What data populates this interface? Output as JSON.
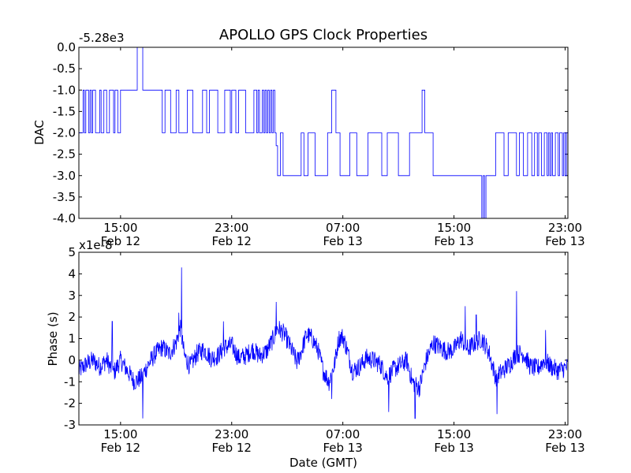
{
  "figure_title": "APOLLO GPS Clock Properties",
  "colors": {
    "line": "#0000ff",
    "frame": "#000000",
    "background": "#ffffff"
  },
  "chart_data": [
    {
      "type": "line",
      "name": "dac",
      "title": "APOLLO GPS Clock Properties",
      "ylabel": "DAC",
      "xlabel": "",
      "offset_text": "-5.28e3",
      "ylim": [
        -4.0,
        0.0
      ],
      "yticks": [
        0.0,
        -0.5,
        -1.0,
        -1.5,
        -2.0,
        -2.5,
        -3.0,
        -3.5,
        -4.0
      ],
      "ytick_labels": [
        "0.0",
        "-0.5",
        "-1.0",
        "-1.5",
        "-2.0",
        "-2.5",
        "-3.0",
        "-3.5",
        "-4.0"
      ],
      "xlim_hours": [
        12.0,
        47.2
      ],
      "xticks_hours": [
        15,
        23,
        31,
        39,
        47
      ],
      "xtick_labels": [
        [
          "15:00",
          "Feb 12"
        ],
        [
          "23:00",
          "Feb 12"
        ],
        [
          "07:00",
          "Feb 13"
        ],
        [
          "15:00",
          "Feb 13"
        ],
        [
          "23:00",
          "Feb 13"
        ]
      ],
      "series": [
        {
          "name": "DAC",
          "step": true,
          "points": [
            [
              12.0,
              -2
            ],
            [
              12.3,
              -1
            ],
            [
              12.4,
              -2
            ],
            [
              12.5,
              -1
            ],
            [
              12.7,
              -2
            ],
            [
              12.8,
              -1
            ],
            [
              12.9,
              -2
            ],
            [
              13.0,
              -1
            ],
            [
              13.2,
              -2
            ],
            [
              13.5,
              -1
            ],
            [
              13.6,
              -2
            ],
            [
              13.8,
              -1
            ],
            [
              14.0,
              -2
            ],
            [
              14.2,
              -1
            ],
            [
              14.5,
              -2
            ],
            [
              14.6,
              -1
            ],
            [
              14.8,
              -2
            ],
            [
              15.0,
              -1
            ],
            [
              16.2,
              0
            ],
            [
              16.6,
              -1
            ],
            [
              18.0,
              -2
            ],
            [
              18.2,
              -1
            ],
            [
              18.6,
              -2
            ],
            [
              19.0,
              -1
            ],
            [
              19.2,
              -2
            ],
            [
              19.8,
              -1
            ],
            [
              20.2,
              -2
            ],
            [
              20.9,
              -1
            ],
            [
              21.2,
              -2
            ],
            [
              21.4,
              -1
            ],
            [
              22.0,
              -2
            ],
            [
              22.5,
              -1
            ],
            [
              22.9,
              -2
            ],
            [
              23.0,
              -1
            ],
            [
              23.3,
              -2
            ],
            [
              23.5,
              -1
            ],
            [
              24.0,
              -2
            ],
            [
              24.6,
              -1
            ],
            [
              24.8,
              -2
            ],
            [
              24.9,
              -1
            ],
            [
              25.0,
              -2
            ],
            [
              25.2,
              -1
            ],
            [
              25.3,
              -2
            ],
            [
              25.4,
              -1
            ],
            [
              25.5,
              -2
            ],
            [
              25.6,
              -1
            ],
            [
              25.7,
              -2
            ],
            [
              25.8,
              -1
            ],
            [
              25.9,
              -2
            ],
            [
              26.0,
              -1
            ],
            [
              26.1,
              -2
            ],
            [
              26.2,
              -2.3
            ],
            [
              26.3,
              -3
            ],
            [
              26.5,
              -2
            ],
            [
              26.7,
              -3
            ],
            [
              28.0,
              -2
            ],
            [
              28.2,
              -3
            ],
            [
              28.5,
              -2
            ],
            [
              29.0,
              -3
            ],
            [
              29.9,
              -2
            ],
            [
              30.2,
              -1
            ],
            [
              30.5,
              -2
            ],
            [
              30.8,
              -3
            ],
            [
              31.5,
              -2
            ],
            [
              32.0,
              -3
            ],
            [
              32.8,
              -2
            ],
            [
              33.8,
              -3
            ],
            [
              34.2,
              -2
            ],
            [
              35.0,
              -3
            ],
            [
              35.8,
              -2
            ],
            [
              36.7,
              -1
            ],
            [
              36.9,
              -2
            ],
            [
              37.5,
              -3
            ],
            [
              41.0,
              -4
            ],
            [
              41.1,
              -3
            ],
            [
              41.2,
              -4
            ],
            [
              41.3,
              -3
            ],
            [
              42.0,
              -2
            ],
            [
              42.6,
              -3
            ],
            [
              42.9,
              -2
            ],
            [
              43.5,
              -3
            ],
            [
              43.7,
              -2
            ],
            [
              44.0,
              -3
            ],
            [
              44.3,
              -2
            ],
            [
              44.6,
              -3
            ],
            [
              44.8,
              -2
            ],
            [
              45.0,
              -3
            ],
            [
              45.1,
              -2
            ],
            [
              45.3,
              -3
            ],
            [
              45.5,
              -2
            ],
            [
              45.7,
              -3
            ],
            [
              45.8,
              -2
            ],
            [
              45.9,
              -3
            ],
            [
              46.0,
              -2
            ],
            [
              46.1,
              -3
            ],
            [
              46.3,
              -2
            ],
            [
              46.5,
              -3
            ],
            [
              46.6,
              -2
            ],
            [
              46.8,
              -3
            ],
            [
              46.9,
              -2
            ],
            [
              47.0,
              -3
            ],
            [
              47.1,
              -2
            ],
            [
              47.2,
              -2
            ]
          ]
        }
      ]
    },
    {
      "type": "line",
      "name": "phase",
      "title": "",
      "ylabel": "Phase (s)",
      "xlabel": "Date (GMT)",
      "offset_text": "x1e-8",
      "ylim": [
        -3,
        5
      ],
      "yticks": [
        5,
        4,
        3,
        2,
        1,
        0,
        -1,
        -2,
        -3
      ],
      "ytick_labels": [
        "5",
        "4",
        "3",
        "2",
        "1",
        "0",
        "-1",
        "-2",
        "-3"
      ],
      "xlim_hours": [
        12.0,
        47.2
      ],
      "xticks_hours": [
        15,
        23,
        31,
        39,
        47
      ],
      "xtick_labels": [
        [
          "15:00",
          "Feb 12"
        ],
        [
          "23:00",
          "Feb 12"
        ],
        [
          "07:00",
          "Feb 13"
        ],
        [
          "15:00",
          "Feb 13"
        ],
        [
          "23:00",
          "Feb 13"
        ]
      ],
      "series": [
        {
          "name": "Phase",
          "step": false,
          "noise_amplitude": 0.45,
          "envelope": [
            [
              12.0,
              -0.5
            ],
            [
              12.5,
              -0.2
            ],
            [
              13.0,
              0.0
            ],
            [
              13.5,
              -0.3
            ],
            [
              14.0,
              0.0
            ],
            [
              14.5,
              -0.6
            ],
            [
              15.0,
              0.0
            ],
            [
              15.5,
              -0.5
            ],
            [
              16.0,
              -1.0
            ],
            [
              16.5,
              -0.8
            ],
            [
              17.0,
              -0.2
            ],
            [
              17.5,
              0.3
            ],
            [
              18.0,
              0.6
            ],
            [
              18.5,
              0.3
            ],
            [
              19.0,
              0.8
            ],
            [
              19.3,
              1.5
            ],
            [
              19.6,
              0.2
            ],
            [
              20.0,
              -0.3
            ],
            [
              20.5,
              0.3
            ],
            [
              21.0,
              0.5
            ],
            [
              21.5,
              0.1
            ],
            [
              22.0,
              0.2
            ],
            [
              22.5,
              0.6
            ],
            [
              23.0,
              0.7
            ],
            [
              23.5,
              0.1
            ],
            [
              24.0,
              0.2
            ],
            [
              24.5,
              0.5
            ],
            [
              25.0,
              0.2
            ],
            [
              25.5,
              0.4
            ],
            [
              26.0,
              1.0
            ],
            [
              26.3,
              1.5
            ],
            [
              26.8,
              1.2
            ],
            [
              27.3,
              0.5
            ],
            [
              27.7,
              -0.1
            ],
            [
              28.0,
              0.4
            ],
            [
              28.4,
              1.2
            ],
            [
              28.8,
              1.0
            ],
            [
              29.2,
              0.5
            ],
            [
              29.6,
              -0.5
            ],
            [
              30.0,
              -1.0
            ],
            [
              30.4,
              -0.2
            ],
            [
              30.7,
              1.0
            ],
            [
              31.0,
              1.1
            ],
            [
              31.3,
              0.5
            ],
            [
              31.7,
              -0.5
            ],
            [
              32.2,
              -0.3
            ],
            [
              32.7,
              0.1
            ],
            [
              33.2,
              0.0
            ],
            [
              33.7,
              -0.2
            ],
            [
              34.2,
              -0.8
            ],
            [
              34.7,
              -0.4
            ],
            [
              35.2,
              -0.2
            ],
            [
              35.6,
              0.0
            ],
            [
              36.0,
              -1.0
            ],
            [
              36.5,
              -1.3
            ],
            [
              37.0,
              0.0
            ],
            [
              37.5,
              0.8
            ],
            [
              38.0,
              0.6
            ],
            [
              38.5,
              0.4
            ],
            [
              39.0,
              0.5
            ],
            [
              39.5,
              1.0
            ],
            [
              40.0,
              0.5
            ],
            [
              40.5,
              0.8
            ],
            [
              41.0,
              1.0
            ],
            [
              41.5,
              0.4
            ],
            [
              42.0,
              -0.8
            ],
            [
              42.5,
              -0.5
            ],
            [
              43.0,
              -0.2
            ],
            [
              43.5,
              0.3
            ],
            [
              44.0,
              0.3
            ],
            [
              44.5,
              -0.3
            ],
            [
              45.0,
              -0.4
            ],
            [
              45.5,
              0.0
            ],
            [
              46.0,
              -0.3
            ],
            [
              46.5,
              -0.5
            ],
            [
              47.2,
              -0.3
            ]
          ],
          "spikes": [
            [
              14.4,
              1.8
            ],
            [
              16.6,
              -2.7
            ],
            [
              19.2,
              2.2
            ],
            [
              19.4,
              4.3
            ],
            [
              22.4,
              1.8
            ],
            [
              26.2,
              2.7
            ],
            [
              30.2,
              -1.8
            ],
            [
              34.3,
              -2.4
            ],
            [
              36.2,
              -2.7
            ],
            [
              39.8,
              2.5
            ],
            [
              40.6,
              2.1
            ],
            [
              42.1,
              -2.5
            ],
            [
              43.5,
              3.2
            ],
            [
              45.6,
              1.4
            ]
          ]
        }
      ]
    }
  ]
}
